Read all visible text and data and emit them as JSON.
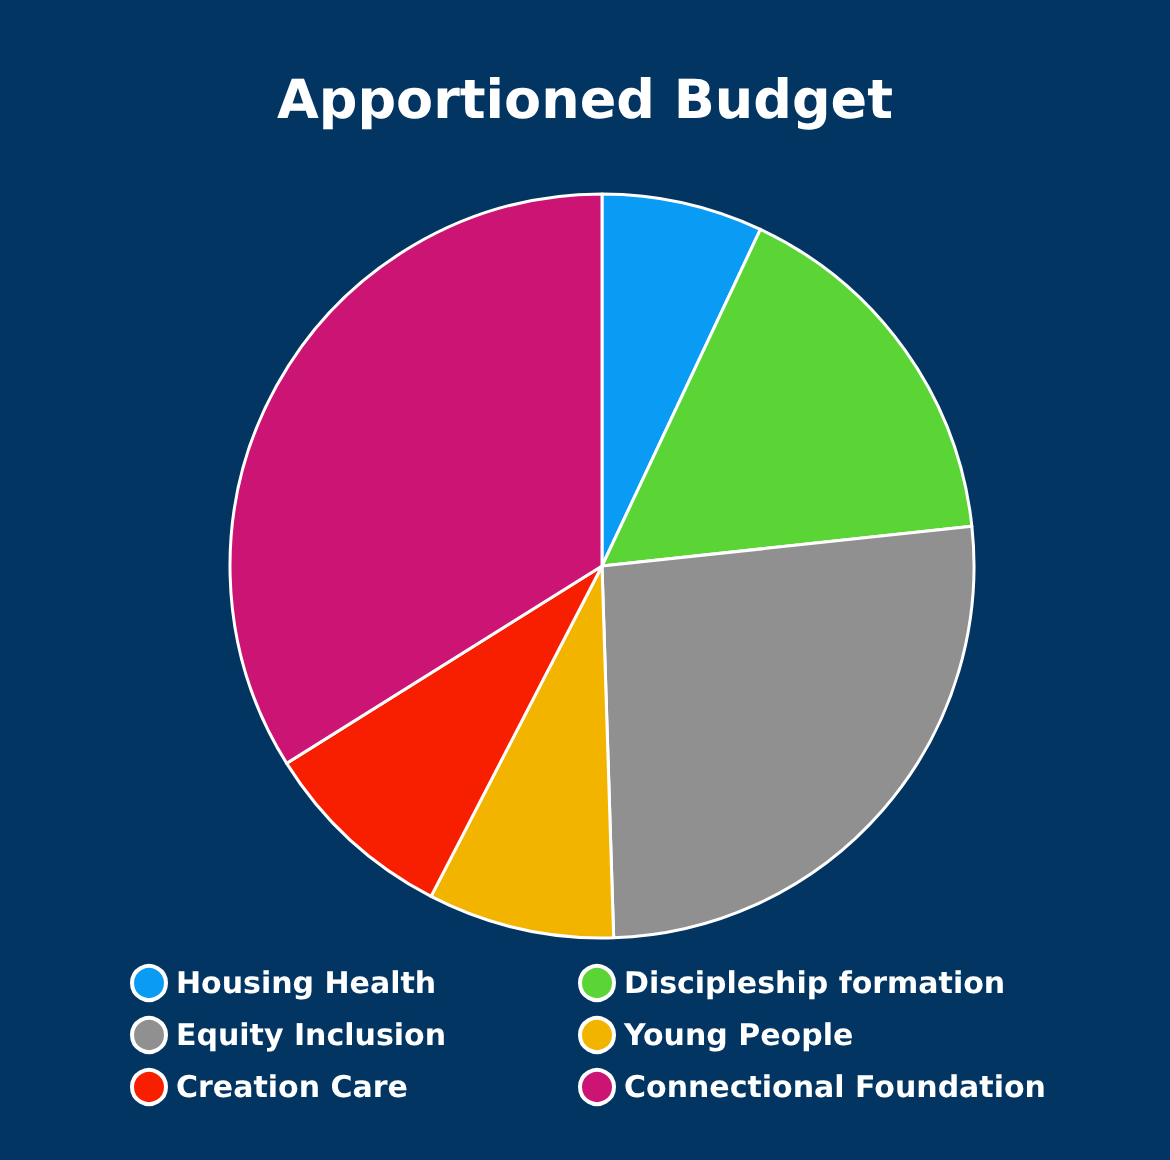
{
  "chart_data": {
    "type": "pie",
    "title": "Apportioned Budget",
    "categories": [
      "Housing Health",
      "Discipleship formation",
      "Equity Inclusion",
      "Young People",
      "Creation Care",
      "Connectional Foundation"
    ],
    "values": [
      7.0,
      16.3,
      26.2,
      8.1,
      8.5,
      33.9
    ],
    "colors": [
      "#0a9cf5",
      "#5bd535",
      "#909090",
      "#f3b400",
      "#f81e00",
      "#cc1474"
    ],
    "legend": "bottom"
  }
}
